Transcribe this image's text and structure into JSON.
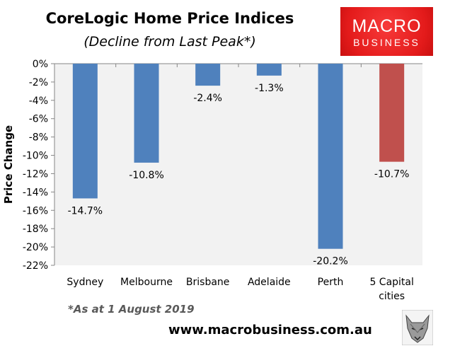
{
  "header": {
    "title": "CoreLogic Home Price Indices",
    "subtitle": "(Decline from Last Peak*)"
  },
  "logo": {
    "line1": "MACRO",
    "line2": "BUSINESS"
  },
  "footer": {
    "note": "*As at 1 August 2019",
    "url": "www.macrobusiness.com.au"
  },
  "colors": {
    "bar": "#4f81bd",
    "highlight": "#c0504d",
    "plot_bg": "#f2f2f2"
  },
  "chart_data": {
    "type": "bar",
    "title": "CoreLogic Home Price Indices",
    "subtitle": "(Decline from Last Peak*)",
    "categories": [
      [
        "Sydney"
      ],
      [
        "Melbourne"
      ],
      [
        "Brisbane"
      ],
      [
        "Adelaide"
      ],
      [
        "Perth"
      ],
      [
        "5 Capital",
        "cities"
      ]
    ],
    "values": [
      -14.7,
      -10.8,
      -2.4,
      -1.3,
      -20.2,
      -10.7
    ],
    "data_labels": [
      "-14.7%",
      "-10.8%",
      "-2.4%",
      "-1.3%",
      "-20.2%",
      "-10.7%"
    ],
    "highlight_index": 5,
    "ylabel": "Price Change",
    "xlabel": "",
    "ylim": [
      -22,
      0
    ],
    "yticks": [
      0,
      -2,
      -4,
      -6,
      -8,
      -10,
      -12,
      -14,
      -16,
      -18,
      -20,
      -22
    ],
    "ytick_labels": [
      "0%",
      "-2%",
      "-4%",
      "-6%",
      "-8%",
      "-10%",
      "-12%",
      "-14%",
      "-16%",
      "-18%",
      "-20%",
      "-22%"
    ],
    "grid": false,
    "legend": "none"
  }
}
